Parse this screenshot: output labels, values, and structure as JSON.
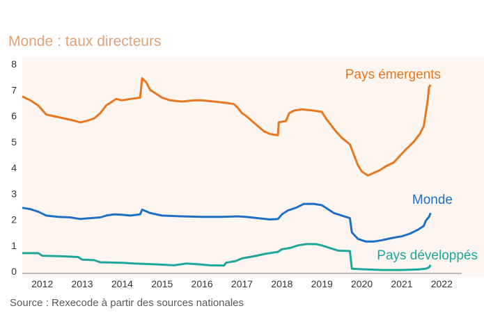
{
  "title": "Monde : taux directeurs",
  "source": "Source :  Rexecode à partir des sources nationales",
  "chart_data": {
    "type": "line",
    "ylim": [
      0,
      8
    ],
    "xlim": [
      2011.5,
      2022.5
    ],
    "y_ticks": [
      "0",
      "1",
      "2",
      "3",
      "4",
      "5",
      "6",
      "7",
      "8"
    ],
    "x_ticks": [
      "2012",
      "2013",
      "2014",
      "2015",
      "2016",
      "2017",
      "2018",
      "2019",
      "2020",
      "2021",
      "2022"
    ],
    "grid": false,
    "plot_background": "#fdf5f0",
    "series": [
      {
        "name": "Pays émergents",
        "color": "#e87722",
        "points": [
          [
            2011.5,
            6.75
          ],
          [
            2011.7,
            6.6
          ],
          [
            2011.9,
            6.4
          ],
          [
            2012.1,
            6.05
          ],
          [
            2012.4,
            5.95
          ],
          [
            2012.7,
            5.85
          ],
          [
            2012.95,
            5.75
          ],
          [
            2013.1,
            5.8
          ],
          [
            2013.3,
            5.9
          ],
          [
            2013.45,
            6.1
          ],
          [
            2013.6,
            6.4
          ],
          [
            2013.75,
            6.55
          ],
          [
            2013.85,
            6.65
          ],
          [
            2014.0,
            6.6
          ],
          [
            2014.2,
            6.65
          ],
          [
            2014.45,
            6.7
          ],
          [
            2014.5,
            7.45
          ],
          [
            2014.6,
            7.3
          ],
          [
            2014.7,
            7.0
          ],
          [
            2014.85,
            6.85
          ],
          [
            2015.0,
            6.7
          ],
          [
            2015.2,
            6.6
          ],
          [
            2015.5,
            6.55
          ],
          [
            2015.8,
            6.6
          ],
          [
            2016.0,
            6.6
          ],
          [
            2016.3,
            6.55
          ],
          [
            2016.6,
            6.5
          ],
          [
            2016.8,
            6.45
          ],
          [
            2016.9,
            6.3
          ],
          [
            2017.0,
            6.1
          ],
          [
            2017.1,
            6.0
          ],
          [
            2017.25,
            5.8
          ],
          [
            2017.4,
            5.6
          ],
          [
            2017.55,
            5.4
          ],
          [
            2017.7,
            5.3
          ],
          [
            2017.9,
            5.25
          ],
          [
            2017.92,
            5.75
          ],
          [
            2018.1,
            5.8
          ],
          [
            2018.18,
            6.1
          ],
          [
            2018.3,
            6.2
          ],
          [
            2018.5,
            6.25
          ],
          [
            2018.8,
            6.2
          ],
          [
            2019.0,
            6.15
          ],
          [
            2019.1,
            5.9
          ],
          [
            2019.2,
            5.7
          ],
          [
            2019.35,
            5.4
          ],
          [
            2019.5,
            5.15
          ],
          [
            2019.7,
            4.9
          ],
          [
            2019.8,
            4.5
          ],
          [
            2019.9,
            4.1
          ],
          [
            2020.0,
            3.85
          ],
          [
            2020.15,
            3.7
          ],
          [
            2020.3,
            3.8
          ],
          [
            2020.45,
            3.9
          ],
          [
            2020.6,
            4.05
          ],
          [
            2020.8,
            4.2
          ],
          [
            2020.95,
            4.45
          ],
          [
            2021.1,
            4.7
          ],
          [
            2021.3,
            5.0
          ],
          [
            2021.45,
            5.3
          ],
          [
            2021.55,
            5.6
          ],
          [
            2021.6,
            6.1
          ],
          [
            2021.65,
            6.6
          ],
          [
            2021.68,
            7.1
          ],
          [
            2021.72,
            7.2
          ]
        ]
      },
      {
        "name": "Monde",
        "color": "#1f6fc5",
        "points": [
          [
            2011.5,
            2.45
          ],
          [
            2011.7,
            2.4
          ],
          [
            2011.9,
            2.3
          ],
          [
            2012.1,
            2.15
          ],
          [
            2012.4,
            2.1
          ],
          [
            2012.7,
            2.08
          ],
          [
            2012.95,
            2.02
          ],
          [
            2013.2,
            2.05
          ],
          [
            2013.45,
            2.08
          ],
          [
            2013.6,
            2.15
          ],
          [
            2013.8,
            2.2
          ],
          [
            2014.0,
            2.18
          ],
          [
            2014.2,
            2.15
          ],
          [
            2014.45,
            2.2
          ],
          [
            2014.5,
            2.38
          ],
          [
            2014.7,
            2.25
          ],
          [
            2014.85,
            2.2
          ],
          [
            2015.0,
            2.15
          ],
          [
            2015.5,
            2.12
          ],
          [
            2016.0,
            2.1
          ],
          [
            2016.5,
            2.1
          ],
          [
            2016.9,
            2.12
          ],
          [
            2017.1,
            2.1
          ],
          [
            2017.4,
            2.05
          ],
          [
            2017.7,
            2.0
          ],
          [
            2017.9,
            2.02
          ],
          [
            2018.0,
            2.2
          ],
          [
            2018.15,
            2.35
          ],
          [
            2018.35,
            2.45
          ],
          [
            2018.55,
            2.6
          ],
          [
            2018.8,
            2.6
          ],
          [
            2019.0,
            2.55
          ],
          [
            2019.15,
            2.4
          ],
          [
            2019.3,
            2.25
          ],
          [
            2019.5,
            2.15
          ],
          [
            2019.7,
            2.05
          ],
          [
            2019.75,
            1.5
          ],
          [
            2019.9,
            1.25
          ],
          [
            2020.1,
            1.15
          ],
          [
            2020.3,
            1.15
          ],
          [
            2020.5,
            1.2
          ],
          [
            2020.8,
            1.3
          ],
          [
            2021.0,
            1.35
          ],
          [
            2021.2,
            1.45
          ],
          [
            2021.4,
            1.6
          ],
          [
            2021.55,
            1.75
          ],
          [
            2021.6,
            1.95
          ],
          [
            2021.68,
            2.1
          ],
          [
            2021.72,
            2.25
          ]
        ]
      },
      {
        "name": "Pays développés",
        "color": "#1fa69b",
        "points": [
          [
            2011.5,
            0.7
          ],
          [
            2011.9,
            0.7
          ],
          [
            2012.0,
            0.6
          ],
          [
            2012.5,
            0.58
          ],
          [
            2012.9,
            0.55
          ],
          [
            2013.0,
            0.45
          ],
          [
            2013.3,
            0.43
          ],
          [
            2013.45,
            0.35
          ],
          [
            2014.0,
            0.33
          ],
          [
            2014.3,
            0.3
          ],
          [
            2014.8,
            0.27
          ],
          [
            2015.3,
            0.23
          ],
          [
            2015.6,
            0.3
          ],
          [
            2015.9,
            0.27
          ],
          [
            2016.2,
            0.23
          ],
          [
            2016.55,
            0.22
          ],
          [
            2016.6,
            0.33
          ],
          [
            2016.85,
            0.4
          ],
          [
            2017.0,
            0.5
          ],
          [
            2017.3,
            0.58
          ],
          [
            2017.6,
            0.68
          ],
          [
            2017.9,
            0.75
          ],
          [
            2018.0,
            0.85
          ],
          [
            2018.2,
            0.9
          ],
          [
            2018.4,
            1.0
          ],
          [
            2018.6,
            1.05
          ],
          [
            2018.85,
            1.05
          ],
          [
            2019.0,
            1.0
          ],
          [
            2019.2,
            0.9
          ],
          [
            2019.4,
            0.8
          ],
          [
            2019.7,
            0.78
          ],
          [
            2019.75,
            0.1
          ],
          [
            2020.0,
            0.08
          ],
          [
            2020.5,
            0.05
          ],
          [
            2021.0,
            0.05
          ],
          [
            2021.4,
            0.07
          ],
          [
            2021.6,
            0.1
          ],
          [
            2021.68,
            0.15
          ],
          [
            2021.72,
            0.25
          ]
        ]
      }
    ],
    "labels": [
      {
        "text": "Pays émergents",
        "series": 0
      },
      {
        "text": "Monde",
        "series": 1
      },
      {
        "text": "Pays développés",
        "series": 2
      }
    ]
  }
}
